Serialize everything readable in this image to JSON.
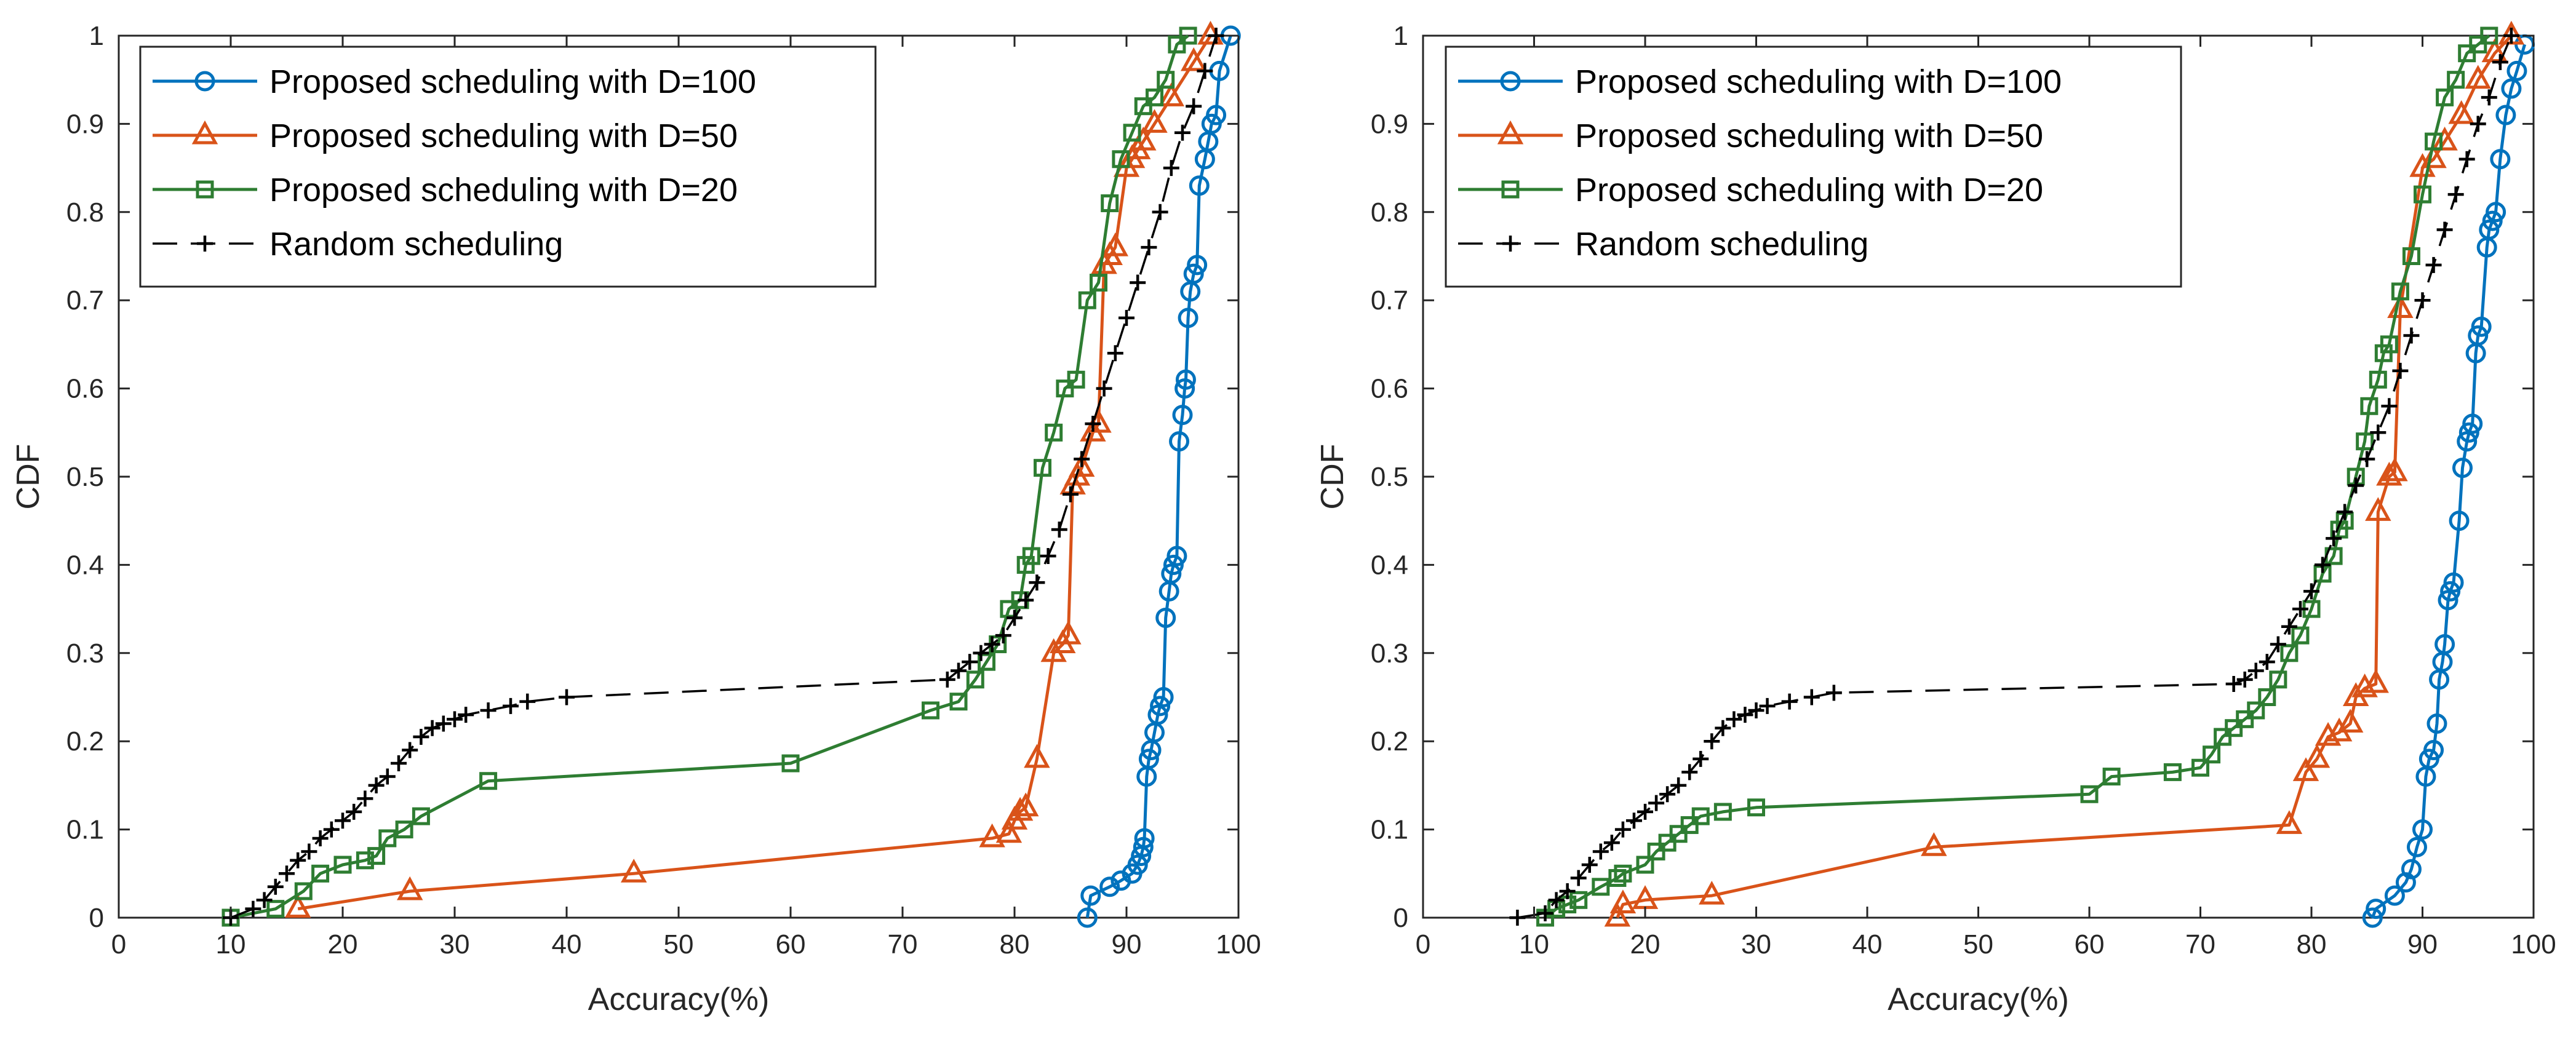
{
  "chart_data": [
    {
      "type": "line",
      "xlabel": "Accuracy(%)",
      "ylabel": "CDF",
      "xlim": [
        0,
        100
      ],
      "ylim": [
        0,
        1
      ],
      "xticks": [
        "0",
        "10",
        "20",
        "30",
        "40",
        "50",
        "60",
        "70",
        "80",
        "90",
        "100"
      ],
      "yticks": [
        "0",
        "0.1",
        "0.2",
        "0.3",
        "0.4",
        "0.5",
        "0.6",
        "0.7",
        "0.8",
        "0.9",
        "1"
      ],
      "grid": false,
      "legend_position": "top-left",
      "series": [
        {
          "name": "Proposed scheduling with D=100",
          "color": "#0072BD",
          "marker": "circle",
          "dash": "solid",
          "x": [
            86.5,
            86.8,
            88.5,
            89.5,
            90.5,
            91,
            91.3,
            91.5,
            91.6,
            91.8,
            92,
            92.2,
            92.5,
            92.8,
            93,
            93.3,
            93.5,
            93.8,
            94,
            94.2,
            94.5,
            94.7,
            95,
            95.2,
            95.3,
            95.5,
            95.7,
            96,
            96.3,
            96.5,
            97,
            97.3,
            97.6,
            98,
            98.3,
            99.3
          ],
          "y": [
            0,
            0.025,
            0.035,
            0.042,
            0.05,
            0.06,
            0.07,
            0.08,
            0.09,
            0.16,
            0.18,
            0.19,
            0.21,
            0.23,
            0.24,
            0.25,
            0.34,
            0.37,
            0.39,
            0.4,
            0.41,
            0.54,
            0.57,
            0.6,
            0.61,
            0.68,
            0.71,
            0.73,
            0.74,
            0.83,
            0.86,
            0.88,
            0.9,
            0.91,
            0.96,
            1.0
          ]
        },
        {
          "name": "Proposed scheduling with D=50",
          "color": "#D95319",
          "marker": "triangle",
          "dash": "solid",
          "x": [
            16,
            26,
            46,
            78,
            79.5,
            80,
            80.5,
            81,
            82,
            83.5,
            84.3,
            84.8,
            85.2,
            85.6,
            86,
            87,
            87.5,
            88,
            88.5,
            89,
            90,
            90.5,
            91,
            91.5,
            92.5,
            94,
            96,
            97.5
          ],
          "y": [
            0.01,
            0.03,
            0.05,
            0.09,
            0.095,
            0.11,
            0.12,
            0.125,
            0.18,
            0.3,
            0.31,
            0.32,
            0.49,
            0.5,
            0.51,
            0.55,
            0.56,
            0.74,
            0.75,
            0.76,
            0.85,
            0.86,
            0.87,
            0.88,
            0.9,
            0.93,
            0.97,
            1.0
          ]
        },
        {
          "name": "Proposed scheduling with D=20",
          "color": "#2E7D32",
          "marker": "square",
          "dash": "solid",
          "x": [
            10,
            14,
            16.5,
            18,
            20,
            22,
            23,
            24,
            25.5,
            27,
            33,
            60,
            72.5,
            75,
            76.5,
            77.5,
            78.5,
            79.5,
            80.5,
            81,
            81.5,
            82.5,
            83.5,
            84.5,
            85.5,
            86.5,
            87.5,
            88.5,
            89.5,
            90.5,
            91.5,
            92.5,
            93.5,
            94.5,
            95.5
          ],
          "y": [
            0,
            0.01,
            0.03,
            0.05,
            0.06,
            0.065,
            0.07,
            0.09,
            0.1,
            0.115,
            0.155,
            0.175,
            0.235,
            0.245,
            0.27,
            0.29,
            0.31,
            0.35,
            0.36,
            0.4,
            0.41,
            0.51,
            0.55,
            0.6,
            0.61,
            0.7,
            0.72,
            0.81,
            0.86,
            0.89,
            0.92,
            0.93,
            0.95,
            0.99,
            1.0
          ]
        },
        {
          "name": "Random scheduling",
          "color": "#000000",
          "marker": "plus",
          "dash": "dashed",
          "x": [
            10,
            12,
            13,
            14,
            15,
            16,
            17,
            18,
            19,
            20,
            21,
            22,
            23,
            24,
            25,
            26,
            27,
            28,
            29,
            30,
            31,
            33,
            35,
            36.5,
            40,
            74,
            75,
            76,
            77,
            78,
            79,
            80,
            81,
            82,
            83,
            84,
            85,
            86,
            87,
            88,
            89,
            90,
            91,
            92,
            93,
            94,
            95,
            96,
            97,
            98
          ],
          "y": [
            0,
            0.01,
            0.02,
            0.035,
            0.05,
            0.065,
            0.075,
            0.09,
            0.1,
            0.11,
            0.12,
            0.135,
            0.15,
            0.16,
            0.175,
            0.19,
            0.205,
            0.215,
            0.22,
            0.225,
            0.23,
            0.235,
            0.24,
            0.245,
            0.25,
            0.27,
            0.28,
            0.29,
            0.3,
            0.31,
            0.32,
            0.34,
            0.36,
            0.38,
            0.41,
            0.44,
            0.48,
            0.52,
            0.56,
            0.6,
            0.64,
            0.68,
            0.72,
            0.76,
            0.8,
            0.85,
            0.89,
            0.92,
            0.96,
            1.0
          ]
        }
      ]
    },
    {
      "type": "line",
      "xlabel": "Accuracy(%)",
      "ylabel": "CDF",
      "xlim": [
        0,
        100
      ],
      "ylim": [
        0,
        1
      ],
      "xticks": [
        "0",
        "10",
        "20",
        "30",
        "40",
        "50",
        "60",
        "70",
        "80",
        "90",
        "100"
      ],
      "yticks": [
        "0",
        "0.1",
        "0.2",
        "0.3",
        "0.4",
        "0.5",
        "0.6",
        "0.7",
        "0.8",
        "0.9",
        "1"
      ],
      "grid": false,
      "legend_position": "top-left",
      "series": [
        {
          "name": "Proposed scheduling with D=100",
          "color": "#0072BD",
          "marker": "circle",
          "dash": "solid",
          "x": [
            85.5,
            85.8,
            87.5,
            88.5,
            89,
            89.5,
            90,
            90.3,
            90.6,
            91,
            91.3,
            91.5,
            91.8,
            92,
            92.3,
            92.5,
            92.8,
            93.3,
            93.6,
            94,
            94.2,
            94.5,
            94.8,
            95,
            95.3,
            95.8,
            96,
            96.3,
            96.6,
            97,
            97.5,
            98,
            98.5,
            99.2
          ],
          "y": [
            0,
            0.01,
            0.025,
            0.04,
            0.055,
            0.08,
            0.1,
            0.16,
            0.18,
            0.19,
            0.22,
            0.27,
            0.29,
            0.31,
            0.36,
            0.37,
            0.38,
            0.45,
            0.51,
            0.54,
            0.55,
            0.56,
            0.64,
            0.66,
            0.67,
            0.76,
            0.78,
            0.79,
            0.8,
            0.86,
            0.91,
            0.94,
            0.96,
            0.99
          ]
        },
        {
          "name": "Proposed scheduling with D=50",
          "color": "#D95319",
          "marker": "triangle",
          "dash": "solid",
          "x": [
            17.5,
            18,
            20,
            26,
            46,
            78,
            79.5,
            80.5,
            81.5,
            82.5,
            83.5,
            84,
            84.8,
            85.8,
            86,
            87,
            87.5,
            88,
            90,
            91,
            92,
            93.5,
            95,
            96.5,
            98
          ],
          "y": [
            0,
            0.015,
            0.02,
            0.025,
            0.08,
            0.105,
            0.165,
            0.18,
            0.205,
            0.21,
            0.22,
            0.25,
            0.26,
            0.265,
            0.46,
            0.5,
            0.505,
            0.69,
            0.85,
            0.86,
            0.88,
            0.91,
            0.95,
            0.98,
            1.0
          ]
        },
        {
          "name": "Proposed scheduling with D=20",
          "color": "#2E7D32",
          "marker": "square",
          "dash": "solid",
          "x": [
            11,
            12,
            13,
            14,
            16,
            17.5,
            18,
            20,
            21,
            22,
            23,
            24,
            25,
            27,
            30,
            60,
            62,
            67.5,
            70,
            71,
            72,
            73,
            74,
            75,
            76,
            77,
            78,
            79,
            80,
            81,
            82,
            82.5,
            83,
            84,
            84.8,
            85.2,
            86,
            86.5,
            87,
            88,
            89,
            90,
            91,
            92,
            93,
            94,
            95,
            96
          ],
          "y": [
            0,
            0.01,
            0.015,
            0.02,
            0.035,
            0.045,
            0.05,
            0.06,
            0.075,
            0.085,
            0.095,
            0.105,
            0.115,
            0.12,
            0.125,
            0.14,
            0.16,
            0.165,
            0.17,
            0.185,
            0.205,
            0.215,
            0.225,
            0.235,
            0.25,
            0.27,
            0.3,
            0.32,
            0.35,
            0.39,
            0.41,
            0.44,
            0.45,
            0.5,
            0.54,
            0.58,
            0.61,
            0.64,
            0.65,
            0.71,
            0.75,
            0.82,
            0.88,
            0.93,
            0.95,
            0.98,
            0.99,
            1.0
          ]
        },
        {
          "name": "Random scheduling",
          "color": "#000000",
          "marker": "plus",
          "dash": "dashed",
          "x": [
            8.5,
            11,
            12,
            13,
            14,
            15,
            16,
            17,
            18,
            19,
            20,
            21,
            22,
            23,
            24,
            25,
            26,
            27,
            28,
            29,
            30,
            31,
            33,
            35,
            37,
            73,
            74,
            75,
            76,
            77,
            78,
            79,
            80,
            81,
            82,
            83,
            84,
            85,
            86,
            87,
            88,
            89,
            90,
            91,
            92,
            93,
            94,
            95,
            96,
            97,
            98
          ],
          "y": [
            0,
            0.005,
            0.02,
            0.03,
            0.045,
            0.06,
            0.075,
            0.085,
            0.1,
            0.11,
            0.12,
            0.13,
            0.14,
            0.15,
            0.165,
            0.18,
            0.2,
            0.215,
            0.225,
            0.23,
            0.235,
            0.24,
            0.245,
            0.25,
            0.255,
            0.265,
            0.27,
            0.28,
            0.29,
            0.31,
            0.33,
            0.35,
            0.37,
            0.4,
            0.43,
            0.46,
            0.49,
            0.52,
            0.55,
            0.58,
            0.62,
            0.66,
            0.7,
            0.74,
            0.78,
            0.82,
            0.86,
            0.9,
            0.93,
            0.97,
            1.0
          ]
        }
      ]
    }
  ]
}
